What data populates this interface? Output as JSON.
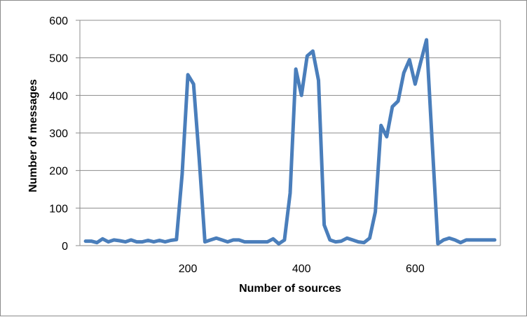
{
  "chart_data": {
    "type": "line",
    "title": "",
    "xlabel": "Number of sources",
    "ylabel": "Number of messages",
    "xlim": [
      10,
      750
    ],
    "ylim": [
      0,
      600
    ],
    "x_ticks": [
      200,
      400,
      600
    ],
    "y_ticks": [
      0,
      100,
      200,
      300,
      400,
      500,
      600
    ],
    "grid": true,
    "legend": "none",
    "series": [
      {
        "color": "#4a7ebb",
        "x": [
          20,
          30,
          40,
          50,
          60,
          70,
          80,
          90,
          100,
          110,
          120,
          130,
          140,
          150,
          160,
          170,
          180,
          190,
          200,
          210,
          220,
          230,
          240,
          250,
          260,
          270,
          280,
          290,
          300,
          310,
          320,
          330,
          340,
          350,
          360,
          370,
          380,
          390,
          400,
          410,
          420,
          430,
          440,
          450,
          460,
          470,
          480,
          490,
          500,
          510,
          520,
          530,
          540,
          550,
          560,
          570,
          580,
          590,
          600,
          610,
          620,
          630,
          640,
          650,
          660,
          670,
          680,
          690,
          700,
          710,
          720,
          730,
          740
        ],
        "y": [
          12,
          12,
          8,
          18,
          10,
          15,
          13,
          10,
          15,
          10,
          10,
          14,
          10,
          14,
          10,
          14,
          16,
          190,
          455,
          430,
          230,
          10,
          15,
          20,
          15,
          10,
          15,
          15,
          10,
          10,
          10,
          10,
          10,
          18,
          5,
          15,
          140,
          470,
          400,
          505,
          518,
          440,
          55,
          15,
          10,
          12,
          20,
          15,
          10,
          8,
          20,
          90,
          320,
          290,
          370,
          385,
          460,
          495,
          430,
          490,
          548,
          275,
          5,
          15,
          20,
          15,
          8,
          15,
          15,
          15,
          15,
          15,
          15
        ]
      }
    ]
  }
}
